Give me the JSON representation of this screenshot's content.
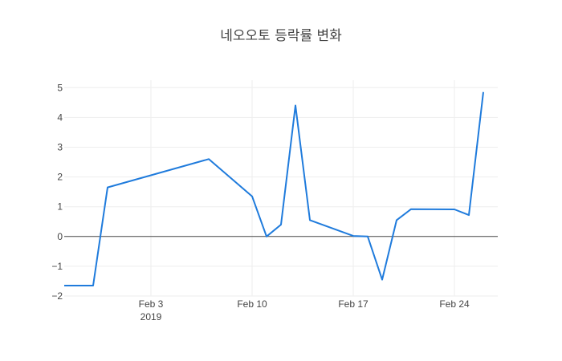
{
  "chart_data": {
    "type": "line",
    "title": "네오오토 등락률 변화",
    "xlabel": "",
    "ylabel": "",
    "x_ticks": [
      {
        "date": "2019-02-03",
        "label": "Feb 3",
        "sublabel": "2019"
      },
      {
        "date": "2019-02-10",
        "label": "Feb 10",
        "sublabel": ""
      },
      {
        "date": "2019-02-17",
        "label": "Feb 17",
        "sublabel": ""
      },
      {
        "date": "2019-02-24",
        "label": "Feb 24",
        "sublabel": ""
      }
    ],
    "y_ticks": [
      -2,
      -1,
      0,
      1,
      2,
      3,
      4,
      5
    ],
    "xlim": [
      "2019-01-28",
      "2019-02-27"
    ],
    "ylim": [
      -2,
      5.25
    ],
    "grid": true,
    "series": [
      {
        "color": "#1f7bdc",
        "points": [
          {
            "x": "2019-01-28",
            "y": -1.65
          },
          {
            "x": "2019-01-30",
            "y": -1.65
          },
          {
            "x": "2019-01-31",
            "y": 1.65
          },
          {
            "x": "2019-02-07",
            "y": 2.6
          },
          {
            "x": "2019-02-10",
            "y": 1.35
          },
          {
            "x": "2019-02-11",
            "y": 0.0
          },
          {
            "x": "2019-02-12",
            "y": 0.4
          },
          {
            "x": "2019-02-13",
            "y": 4.4
          },
          {
            "x": "2019-02-14",
            "y": 0.55
          },
          {
            "x": "2019-02-17",
            "y": 0.02
          },
          {
            "x": "2019-02-18",
            "y": 0.0
          },
          {
            "x": "2019-02-19",
            "y": -1.45
          },
          {
            "x": "2019-02-20",
            "y": 0.55
          },
          {
            "x": "2019-02-21",
            "y": 0.92
          },
          {
            "x": "2019-02-24",
            "y": 0.91
          },
          {
            "x": "2019-02-25",
            "y": 0.72
          },
          {
            "x": "2019-02-26",
            "y": 4.85
          }
        ]
      }
    ]
  }
}
